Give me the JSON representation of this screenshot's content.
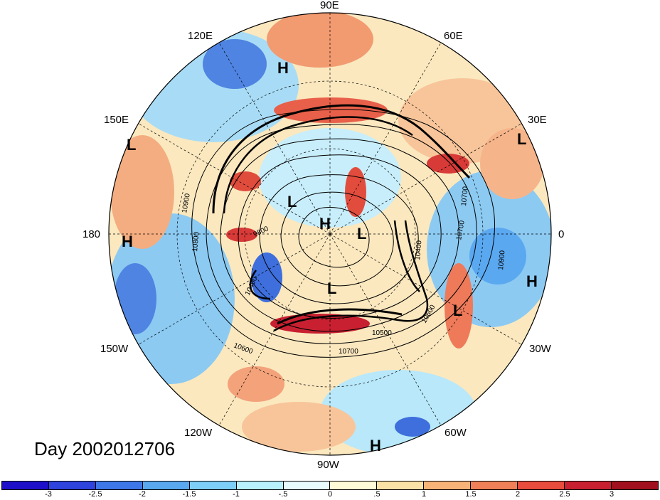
{
  "day_label": "Day 2002012706",
  "lon_labels": [
    "90E",
    "120E",
    "60E",
    "150E",
    "30E",
    "180",
    "0",
    "150W",
    "30W",
    "120W",
    "60W",
    "90W"
  ],
  "pressure_centers": [
    "H",
    "L",
    "L",
    "H",
    "L",
    "H",
    "L",
    "L",
    "H",
    "L",
    "H"
  ],
  "contour_labels": [
    "10900",
    "10800",
    "9800",
    "10400",
    "10600",
    "10700",
    "10700",
    "10400",
    "10600",
    "10500",
    "10700",
    "10900"
  ],
  "colorbar": {
    "colors": [
      "#1e10c8",
      "#2e44dc",
      "#3e78e8",
      "#5aa8f0",
      "#7ecff8",
      "#b8f0fc",
      "#e8fbfc",
      "#fdfbd8",
      "#fbe3a8",
      "#f8b478",
      "#f08058",
      "#e84c3c",
      "#c82030",
      "#a0101e"
    ],
    "ticks": [
      "-3",
      "-2.5",
      "-2",
      "-1.5",
      "-1",
      "-.5",
      "0",
      ".5",
      "1",
      "1.5",
      "2",
      "2.5",
      "3"
    ]
  }
}
